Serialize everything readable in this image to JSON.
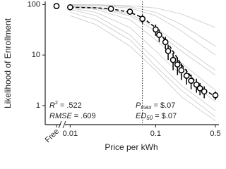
{
  "chart_data": {
    "type": "scatter",
    "x_label": "Price per kWh",
    "y_label": "Likelihood of Enrollment",
    "log_x": true,
    "log_y": true,
    "xlim": [
      0.0092,
      0.55
    ],
    "ylim": [
      0.42,
      115
    ],
    "xticks": [
      0.01,
      0.1,
      0.5
    ],
    "yticks": [
      1,
      10,
      100
    ],
    "free_point": {
      "label": "Free",
      "value": 93
    },
    "vline": 0.07,
    "series": [
      {
        "color": "#000000",
        "x": [
          0.01,
          0.03,
          0.05,
          0.07,
          0.1,
          0.11,
          0.13,
          0.14,
          0.16,
          0.18,
          0.2,
          0.23,
          0.26,
          0.3,
          0.33,
          0.37,
          0.5
        ],
        "values": [
          88,
          82,
          72,
          52,
          32,
          25,
          18,
          12,
          8,
          6.5,
          5,
          3.9,
          3.1,
          2.6,
          2.2,
          1.9,
          1.6
        ],
        "errors": [
          2,
          2,
          4,
          10,
          8,
          7,
          5,
          4,
          3,
          2.5,
          1.8,
          1.3,
          1,
          0.8,
          0.6,
          0.5,
          0.3
        ]
      }
    ],
    "fit": {
      "color": "#000000",
      "x": [
        0.01,
        0.02,
        0.03,
        0.05,
        0.07,
        0.1,
        0.15,
        0.2,
        0.3,
        0.4,
        0.5
      ],
      "values": [
        88,
        86,
        82,
        70,
        55,
        35,
        14,
        6.5,
        2.8,
        1.9,
        1.5
      ]
    },
    "individual_curves": {
      "color": "#c8c8c8",
      "x": [
        0.01,
        0.02,
        0.05,
        0.1,
        0.2,
        0.5
      ],
      "curves": [
        [
          100,
          98,
          90,
          70,
          40,
          15
        ],
        [
          95,
          88,
          65,
          35,
          15,
          5
        ],
        [
          90,
          80,
          50,
          20,
          7,
          2
        ],
        [
          85,
          70,
          35,
          12,
          4,
          1.2
        ],
        [
          98,
          95,
          85,
          60,
          30,
          10
        ],
        [
          80,
          60,
          25,
          8,
          2.5,
          0.8
        ],
        [
          100,
          99,
          95,
          85,
          65,
          35
        ],
        [
          70,
          50,
          20,
          6,
          2,
          0.6
        ],
        [
          92,
          85,
          60,
          30,
          12,
          4
        ],
        [
          60,
          40,
          15,
          5,
          1.5,
          0.5
        ]
      ]
    },
    "annotations": [
      {
        "var": "R",
        "sup": "2",
        "text": "= .522"
      },
      {
        "var": "RMSE",
        "text": "= .609"
      },
      {
        "var": "P",
        "sub": "max",
        "text": "= $.07"
      },
      {
        "var": "ED",
        "sub": "50",
        "text": "= $.07"
      }
    ]
  }
}
